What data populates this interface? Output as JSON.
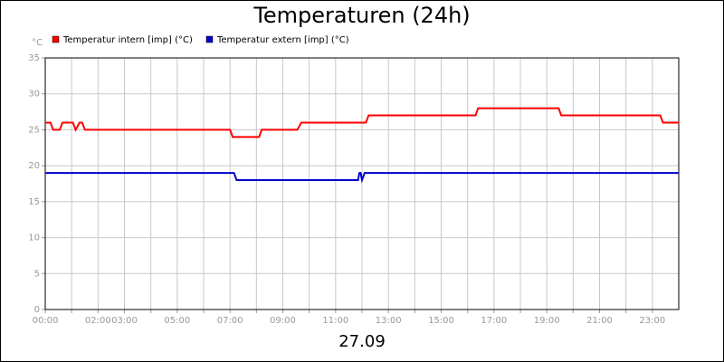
{
  "chart_data": {
    "type": "line",
    "title": "Temperaturen (24h)",
    "y_unit": "°C",
    "x_label": "27.09",
    "xlim": [
      0,
      24
    ],
    "xticks": [
      {
        "value": 0,
        "label": "00:00"
      },
      {
        "value": 2,
        "label": "02:00"
      },
      {
        "value": 3,
        "label": "03:00"
      },
      {
        "value": 5,
        "label": "05:00"
      },
      {
        "value": 7,
        "label": "07:00"
      },
      {
        "value": 9,
        "label": "09:00"
      },
      {
        "value": 11,
        "label": "11:00"
      },
      {
        "value": 13,
        "label": "13:00"
      },
      {
        "value": 15,
        "label": "15:00"
      },
      {
        "value": 17,
        "label": "17:00"
      },
      {
        "value": 19,
        "label": "19:00"
      },
      {
        "value": 21,
        "label": "21:00"
      },
      {
        "value": 23,
        "label": "23:00"
      }
    ],
    "xminor": [
      1,
      4,
      6,
      8,
      10,
      12,
      14,
      16,
      18,
      20,
      22
    ],
    "ylim": [
      0,
      35
    ],
    "yticks": [
      0,
      5,
      10,
      15,
      20,
      25,
      30,
      35
    ],
    "grid": true,
    "series": [
      {
        "name": "Temperatur intern [imp] (°C)",
        "color": "#ff0000",
        "x": [
          0,
          0.2,
          0.3,
          0.55,
          0.65,
          1.05,
          1.15,
          1.3,
          1.4,
          1.5,
          7.0,
          7.1,
          8.1,
          8.2,
          9.55,
          9.7,
          12.15,
          12.25,
          16.3,
          16.4,
          19.45,
          19.55,
          23.3,
          23.4,
          24
        ],
        "values": [
          26,
          26,
          25,
          25,
          26,
          26,
          25,
          26,
          26,
          25,
          25,
          24,
          24,
          25,
          25,
          26,
          26,
          27,
          27,
          28,
          28,
          27,
          27,
          26,
          26
        ]
      },
      {
        "name": "Temperatur extern [imp] (°C)",
        "color": "#0000cc",
        "x": [
          0,
          7.15,
          7.25,
          11.85,
          11.9,
          11.95,
          12.0,
          12.1,
          24
        ],
        "values": [
          19,
          19,
          18,
          18,
          19,
          19,
          18,
          19,
          19
        ]
      }
    ]
  }
}
